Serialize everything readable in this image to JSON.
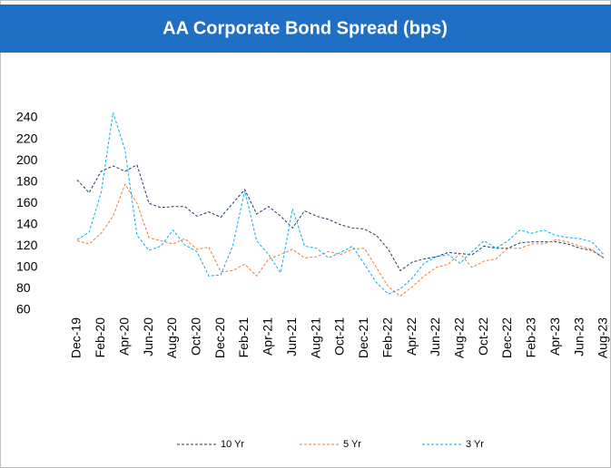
{
  "chart_data": {
    "type": "line",
    "title": "AA  Corporate Bond Spread (bps)",
    "categories": [
      "Dec-19",
      null,
      "Feb-20",
      null,
      "Apr-20",
      null,
      "Jun-20",
      null,
      "Aug-20",
      null,
      "Oct-20",
      null,
      "Dec-20",
      null,
      "Feb-21",
      null,
      "Apr-21",
      null,
      "Jun-21",
      null,
      "Aug-21",
      null,
      "Oct-21",
      null,
      "Dec-21",
      null,
      "Feb-22",
      null,
      "Apr-22",
      null,
      "Jun-22",
      null,
      "Aug-22",
      null,
      "Oct-22",
      null,
      "Dec-22",
      null,
      "Feb-23",
      null,
      "Apr-23",
      null,
      "Jun-23",
      null,
      "Aug-23"
    ],
    "series": [
      {
        "name": "10 Yr",
        "color": "#1f3864",
        "values": [
          182,
          170,
          190,
          195,
          190,
          196,
          160,
          156,
          157,
          157,
          148,
          152,
          147,
          160,
          173,
          150,
          157,
          148,
          137,
          153,
          148,
          145,
          140,
          137,
          136,
          130,
          117,
          97,
          105,
          108,
          110,
          114,
          113,
          112,
          120,
          118,
          118,
          123,
          124,
          124,
          124,
          122,
          118,
          116,
          109
        ]
      },
      {
        "name": "5 Yr",
        "color": "#ed7d31",
        "values": [
          125,
          122,
          132,
          148,
          178,
          160,
          128,
          125,
          122,
          127,
          117,
          119,
          96,
          97,
          103,
          92,
          108,
          112,
          117,
          109,
          110,
          115,
          112,
          117,
          118,
          100,
          82,
          73,
          82,
          92,
          100,
          103,
          113,
          100,
          106,
          108,
          118,
          118,
          122,
          122,
          126,
          124,
          120,
          117,
          109
        ]
      },
      {
        "name": "3 Yr",
        "color": "#00b0f0",
        "values": [
          126,
          133,
          170,
          245,
          210,
          130,
          116,
          120,
          135,
          121,
          115,
          92,
          93,
          120,
          172,
          125,
          112,
          95,
          155,
          120,
          118,
          109,
          114,
          120,
          103,
          86,
          75,
          80,
          90,
          104,
          110,
          112,
          104,
          115,
          125,
          118,
          125,
          135,
          132,
          135,
          130,
          128,
          127,
          124,
          112
        ]
      }
    ],
    "ylim": [
      60,
      240
    ],
    "yticks": [
      60,
      80,
      100,
      120,
      140,
      160,
      180,
      200,
      220,
      240
    ],
    "grid": false,
    "legend": "bottom"
  }
}
